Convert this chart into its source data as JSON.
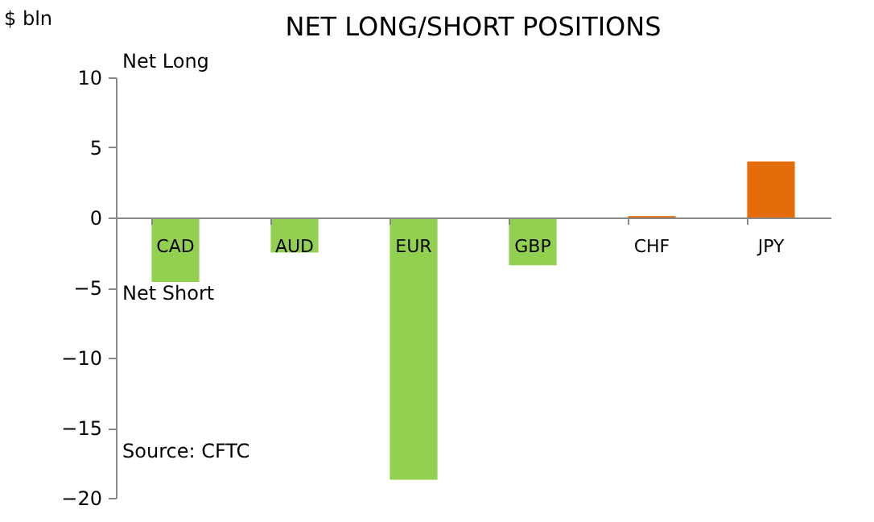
{
  "chart_data": {
    "type": "bar",
    "title": "NET LONG/SHORT POSITIONS",
    "ylabel": "$ bln",
    "categories": [
      "CAD",
      "AUD",
      "EUR",
      "GBP",
      "CHF",
      "JPY"
    ],
    "values": [
      -4.6,
      -2.5,
      -18.7,
      -3.4,
      0.1,
      4.0
    ],
    "colors": [
      "#92d050",
      "#92d050",
      "#92d050",
      "#92d050",
      "#e46c0a",
      "#e46c0a"
    ],
    "ylim": [
      -20,
      10
    ],
    "yticks": [
      -20,
      -15,
      -10,
      -5,
      0,
      5,
      10
    ],
    "grid": false,
    "legend": false,
    "annotations": [
      "Net Long",
      "Net Short",
      "Source: CFTC"
    ]
  }
}
